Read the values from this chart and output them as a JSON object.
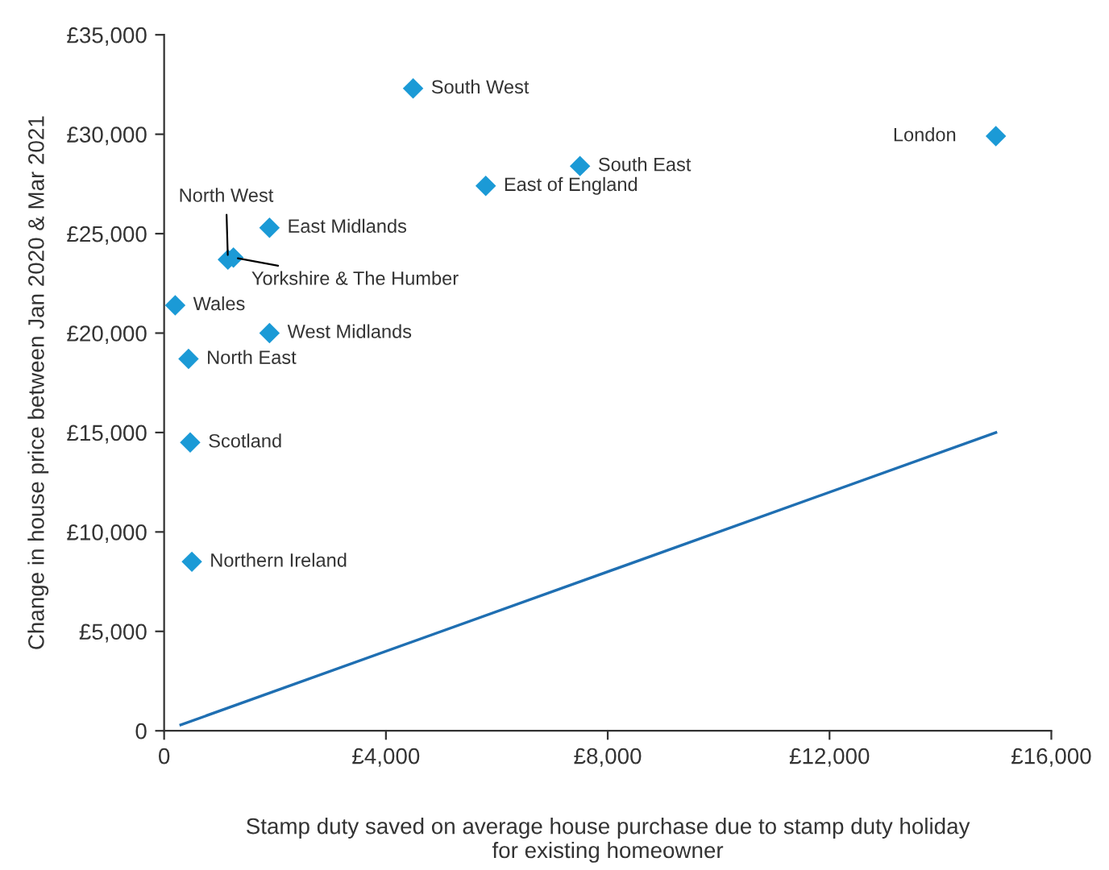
{
  "chart_data": {
    "type": "scatter",
    "xlabel": "Stamp duty saved on average house purchase due to stamp duty holiday\nfor existing homeowner",
    "ylabel": "Change in house price between Jan 2020 & Mar 2021",
    "xlim": [
      0,
      16000
    ],
    "xticks": [
      0,
      {
        "value": 4000,
        "label": "£4,000"
      },
      {
        "value": 8000,
        "label": "£8,000"
      },
      {
        "value": 12000,
        "label": "£12,000"
      },
      {
        "value": 16000,
        "label": "£16,000"
      }
    ],
    "ylim": [
      0,
      35000
    ],
    "yticks": [
      0,
      {
        "value": 5000,
        "label": "£5,000"
      },
      {
        "value": 10000,
        "label": "£10,000"
      },
      {
        "value": 15000,
        "label": "£15,000"
      },
      {
        "value": 20000,
        "label": "£20,000"
      },
      {
        "value": 25000,
        "label": "£25,000"
      },
      {
        "value": 30000,
        "label": "£30,000"
      },
      {
        "value": 35000,
        "label": "£35,000"
      }
    ],
    "grid": false,
    "legend": false,
    "marker": "diamond",
    "series": [
      {
        "color": "#1b9ad6",
        "x": [
          4490,
          15000,
          7500,
          5800,
          1900,
          1150,
          1250,
          200,
          1900,
          440,
          470,
          500
        ],
        "values": [
          32300,
          29900,
          28400,
          27400,
          25300,
          23700,
          23800,
          21400,
          20000,
          18700,
          14500,
          8500
        ]
      },
      {
        "type": "line",
        "color": "#1f6fb2",
        "x": [
          300,
          15000
        ],
        "values": [
          300,
          15000
        ],
        "marker": "none",
        "line_style": "solid"
      }
    ],
    "annotations": [
      {
        "text": "South West",
        "x": 4490,
        "y": 32300
      },
      {
        "text": "London",
        "x": 15000,
        "y": 29900
      },
      {
        "text": "South East",
        "x": 7500,
        "y": 28400
      },
      {
        "text": "East of England",
        "x": 5800,
        "y": 27400
      },
      {
        "text": "East Midlands",
        "x": 1900,
        "y": 25300
      },
      {
        "text": "North West",
        "x": 1150,
        "y": 23700
      },
      {
        "text": "Yorkshire & The Humber",
        "x": 1250,
        "y": 23800
      },
      {
        "text": "Wales",
        "x": 200,
        "y": 21400
      },
      {
        "text": "West Midlands",
        "x": 1900,
        "y": 20000
      },
      {
        "text": "North East",
        "x": 440,
        "y": 18700
      },
      {
        "text": "Scotland",
        "x": 470,
        "y": 14500
      },
      {
        "text": "Northern Ireland",
        "x": 500,
        "y": 8500
      }
    ]
  }
}
